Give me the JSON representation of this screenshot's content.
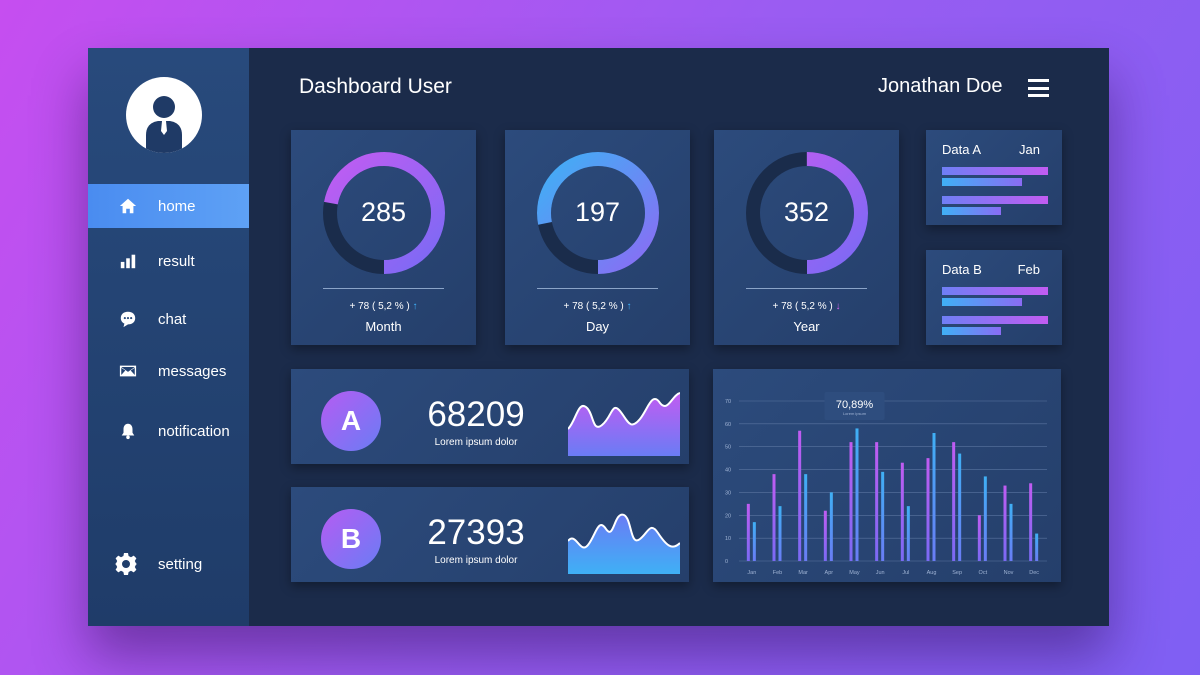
{
  "header": {
    "title": "Dashboard User",
    "user_name": "Jonathan Doe"
  },
  "sidebar": {
    "items": [
      {
        "label": "home",
        "icon": "home-icon"
      },
      {
        "label": "result",
        "icon": "bar-chart-icon"
      },
      {
        "label": "chat",
        "icon": "chat-bubble-icon"
      },
      {
        "label": "messages",
        "icon": "envelope-icon"
      },
      {
        "label": "notification",
        "icon": "bell-icon"
      }
    ],
    "setting": {
      "label": "setting",
      "icon": "gear-icon"
    }
  },
  "gauges": [
    {
      "value": "285",
      "change": "+ 78 ( 5,2 % )",
      "trend": "up",
      "label": "Month",
      "fraction": 0.72
    },
    {
      "value": "197",
      "change": "+ 78 ( 5,2 % )",
      "trend": "up",
      "label": "Day",
      "fraction": 0.78
    },
    {
      "value": "352",
      "change": "+ 78 ( 5,2 % )",
      "trend": "down",
      "label": "Year",
      "fraction": 0.5
    }
  ],
  "data_cards": [
    {
      "name": "Data A",
      "month": "Jan",
      "bars": [
        1.0,
        0.75,
        1.0,
        0.56
      ]
    },
    {
      "name": "Data B",
      "month": "Feb",
      "bars": [
        1.0,
        0.75,
        1.0,
        0.56
      ]
    }
  ],
  "stats": [
    {
      "letter": "A",
      "value": "68209",
      "sub": "Lorem ipsum dolor"
    },
    {
      "letter": "B",
      "value": "27393",
      "sub": "Lorem ipsum dolor"
    }
  ],
  "colors": {
    "purple": "#c15cf2",
    "blue": "#3fb0f5",
    "accent": "#4a8cf0"
  },
  "chart_data": {
    "type": "bar",
    "categories": [
      "Jan",
      "Feb",
      "Mar",
      "Apr",
      "May",
      "Jun",
      "Jul",
      "Aug",
      "Sep",
      "Oct",
      "Nov",
      "Dec"
    ],
    "series": [
      {
        "values": [
          25,
          38,
          57,
          22,
          52,
          52,
          43,
          45,
          52,
          20,
          33,
          34
        ]
      },
      {
        "values": [
          17,
          24,
          38,
          30,
          58,
          39,
          24,
          56,
          47,
          37,
          25,
          12
        ]
      }
    ],
    "yticks": [
      "0",
      "10",
      "20",
      "30",
      "40",
      "50",
      "60",
      "70"
    ],
    "ylim": [
      0,
      70
    ],
    "tooltip": {
      "value": "70,89%",
      "sub": "Lorem ipsum",
      "category": "May"
    },
    "grid": true
  }
}
